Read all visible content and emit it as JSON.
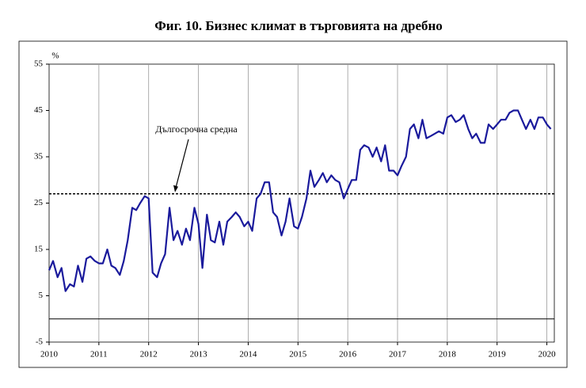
{
  "chart_data": {
    "type": "line",
    "title": "Фиг. 10. Бизнес климат в търговията на дребно",
    "y_unit": "%",
    "color": "#1a1a9c",
    "xlim": [
      2010,
      2020.15
    ],
    "xticks": [
      2010,
      2011,
      2012,
      2013,
      2014,
      2015,
      2016,
      2017,
      2018,
      2019,
      2020
    ],
    "ylim": [
      -5,
      55
    ],
    "yticks": [
      -5,
      5,
      15,
      25,
      35,
      45,
      55
    ],
    "x_grid": true,
    "reference_line": {
      "value": 27,
      "label": "Дългосрочна средна"
    },
    "x": [
      2010.0,
      2010.08,
      2010.17,
      2010.25,
      2010.33,
      2010.42,
      2010.5,
      2010.58,
      2010.67,
      2010.75,
      2010.83,
      2010.92,
      2011.0,
      2011.08,
      2011.17,
      2011.25,
      2011.33,
      2011.42,
      2011.5,
      2011.58,
      2011.67,
      2011.75,
      2011.83,
      2011.92,
      2012.0,
      2012.08,
      2012.17,
      2012.25,
      2012.33,
      2012.42,
      2012.5,
      2012.58,
      2012.67,
      2012.75,
      2012.83,
      2012.92,
      2013.0,
      2013.08,
      2013.17,
      2013.25,
      2013.33,
      2013.42,
      2013.5,
      2013.58,
      2013.67,
      2013.75,
      2013.83,
      2013.92,
      2014.0,
      2014.08,
      2014.17,
      2014.25,
      2014.33,
      2014.42,
      2014.5,
      2014.58,
      2014.67,
      2014.75,
      2014.83,
      2014.92,
      2015.0,
      2015.08,
      2015.17,
      2015.25,
      2015.33,
      2015.42,
      2015.5,
      2015.58,
      2015.67,
      2015.75,
      2015.83,
      2015.92,
      2016.0,
      2016.08,
      2016.17,
      2016.25,
      2016.33,
      2016.42,
      2016.5,
      2016.58,
      2016.67,
      2016.75,
      2016.83,
      2016.92,
      2017.0,
      2017.08,
      2017.17,
      2017.25,
      2017.33,
      2017.42,
      2017.5,
      2017.58,
      2017.67,
      2017.75,
      2017.83,
      2017.92,
      2018.0,
      2018.08,
      2018.17,
      2018.25,
      2018.33,
      2018.42,
      2018.5,
      2018.58,
      2018.67,
      2018.75,
      2018.83,
      2018.92,
      2019.0,
      2019.08,
      2019.17,
      2019.25,
      2019.33,
      2019.42,
      2019.5,
      2019.58,
      2019.67,
      2019.75,
      2019.83,
      2019.92,
      2020.0,
      2020.08
    ],
    "values": [
      10.5,
      12.5,
      9,
      11,
      6,
      7.5,
      7,
      11.5,
      8,
      13,
      13.5,
      12.5,
      12,
      12,
      15,
      11.5,
      11,
      9.5,
      12.5,
      17,
      24,
      23.5,
      25,
      26.5,
      26,
      10,
      9,
      12,
      14,
      24,
      17,
      19,
      16,
      19.5,
      17,
      24,
      20.5,
      11,
      22.5,
      17,
      16.5,
      21,
      16,
      21,
      22,
      23,
      22,
      20,
      21,
      19,
      26,
      27,
      29.5,
      29.5,
      23,
      22,
      18,
      21,
      26,
      20,
      19.5,
      22,
      26,
      32,
      28.5,
      30,
      31.5,
      29.5,
      31,
      30,
      29.5,
      26,
      28,
      30,
      30,
      36.5,
      37.5,
      37,
      35,
      37,
      34,
      37.5,
      32,
      32,
      31,
      33,
      35,
      41,
      42,
      39,
      43,
      39,
      39.5,
      40,
      40.5,
      40,
      43.5,
      44,
      42.5,
      43,
      44,
      41,
      39,
      40,
      38,
      38,
      42,
      41,
      42,
      43,
      43,
      44.5,
      45,
      45,
      43,
      41,
      43,
      41,
      43.5,
      43.5,
      42,
      41
    ]
  }
}
